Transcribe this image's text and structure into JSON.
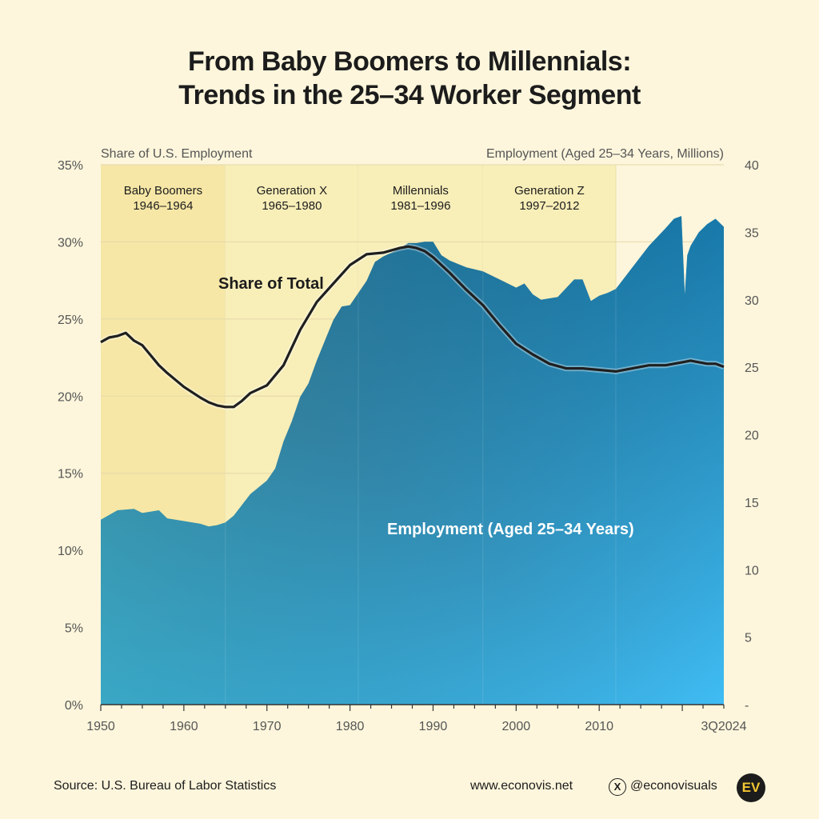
{
  "title": {
    "line1": "From Baby Boomers to Millennials:",
    "line2": "Trends in the 25–34 Worker Segment"
  },
  "footer": {
    "source": "Source: U.S. Bureau of Labor Statistics",
    "website": "www.econovis.net",
    "handle": "@econovisuals",
    "logo_text": "EV"
  },
  "chart_data": {
    "type": "area",
    "left_axis_title": "Share of U.S. Employment",
    "right_axis_title": "Employment (Aged 25–34 Years, Millions)",
    "left_ticks": [
      "0%",
      "5%",
      "10%",
      "15%",
      "20%",
      "25%",
      "30%",
      "35%"
    ],
    "left_range": [
      0,
      35
    ],
    "right_ticks": [
      "-",
      "5",
      "10",
      "15",
      "20",
      "25",
      "30",
      "35",
      "40"
    ],
    "right_range": [
      0,
      40
    ],
    "x_range": [
      1950,
      2025
    ],
    "x_ticks": [
      {
        "label": "1950",
        "value": 1950
      },
      {
        "label": "1960",
        "value": 1960
      },
      {
        "label": "1970",
        "value": 1970
      },
      {
        "label": "1980",
        "value": 1980
      },
      {
        "label": "1990",
        "value": 1990
      },
      {
        "label": "2000",
        "value": 2000
      },
      {
        "label": "2010",
        "value": 2010
      },
      {
        "label": "3Q2024",
        "value": 2025
      }
    ],
    "generations": [
      {
        "name": "Baby Boomers",
        "years": "1946–1964",
        "start": 1950,
        "end": 1965
      },
      {
        "name": "Generation X",
        "years": "1965–1980",
        "start": 1965,
        "end": 1981
      },
      {
        "name": "Millennials",
        "years": "1981–1996",
        "start": 1981,
        "end": 1996
      },
      {
        "name": "Generation Z",
        "years": "1997–2012",
        "start": 1996,
        "end": 2012
      }
    ],
    "series": [
      {
        "name": "Employment (Aged 25–34 Years)",
        "axis": "right",
        "type": "area",
        "x": [
          1950,
          1952,
          1954,
          1955,
          1957,
          1958,
          1960,
          1962,
          1963,
          1964,
          1965,
          1966,
          1967,
          1968,
          1970,
          1971,
          1972,
          1973,
          1974,
          1975,
          1976,
          1977,
          1978,
          1979,
          1980,
          1981,
          1982,
          1983,
          1984,
          1985,
          1986,
          1987,
          1988,
          1989,
          1990,
          1991,
          1992,
          1994,
          1996,
          1998,
          2000,
          2001,
          2002,
          2003,
          2005,
          2007,
          2008,
          2009,
          2010,
          2011,
          2012,
          2014,
          2016,
          2018,
          2019,
          2019.9,
          2020.3,
          2020.6,
          2021,
          2022,
          2023,
          2024,
          2025
        ],
        "values": [
          13.7,
          14.4,
          14.5,
          14.2,
          14.4,
          13.8,
          13.6,
          13.4,
          13.2,
          13.3,
          13.5,
          14.0,
          14.8,
          15.6,
          16.6,
          17.5,
          19.5,
          21.0,
          22.8,
          23.8,
          25.5,
          27.0,
          28.5,
          29.5,
          29.6,
          30.5,
          31.4,
          32.8,
          33.2,
          33.5,
          33.8,
          34.2,
          34.2,
          34.3,
          34.3,
          33.3,
          32.9,
          32.4,
          32.1,
          31.5,
          30.9,
          31.2,
          30.4,
          30.0,
          30.2,
          31.5,
          31.5,
          29.9,
          30.3,
          30.5,
          30.8,
          32.4,
          34.0,
          35.3,
          36.0,
          36.2,
          30.4,
          33.3,
          34.0,
          35.0,
          35.6,
          36.0,
          35.4
        ]
      },
      {
        "name": "Share of Total",
        "axis": "left",
        "type": "line",
        "x": [
          1950,
          1951,
          1952,
          1953,
          1954,
          1955,
          1957,
          1958,
          1960,
          1962,
          1963,
          1964,
          1965,
          1966,
          1967,
          1968,
          1970,
          1972,
          1974,
          1976,
          1978,
          1980,
          1982,
          1984,
          1986,
          1987,
          1988,
          1989,
          1990,
          1992,
          1994,
          1996,
          1998,
          2000,
          2002,
          2004,
          2006,
          2008,
          2010,
          2012,
          2014,
          2016,
          2018,
          2019,
          2020,
          2021,
          2022,
          2023,
          2024,
          2025
        ],
        "values": [
          23.5,
          23.8,
          23.9,
          24.1,
          23.6,
          23.3,
          22.0,
          21.5,
          20.6,
          19.9,
          19.6,
          19.4,
          19.3,
          19.3,
          19.7,
          20.2,
          20.7,
          22.0,
          24.3,
          26.1,
          27.3,
          28.5,
          29.2,
          29.3,
          29.6,
          29.7,
          29.6,
          29.4,
          29.0,
          28.0,
          26.9,
          25.9,
          24.6,
          23.4,
          22.7,
          22.1,
          21.8,
          21.8,
          21.7,
          21.6,
          21.8,
          22.0,
          22.0,
          22.1,
          22.2,
          22.3,
          22.2,
          22.1,
          22.1,
          21.9
        ]
      }
    ],
    "annotations": [
      "Share of Total",
      "Employment (Aged 25–34 Years)"
    ]
  }
}
